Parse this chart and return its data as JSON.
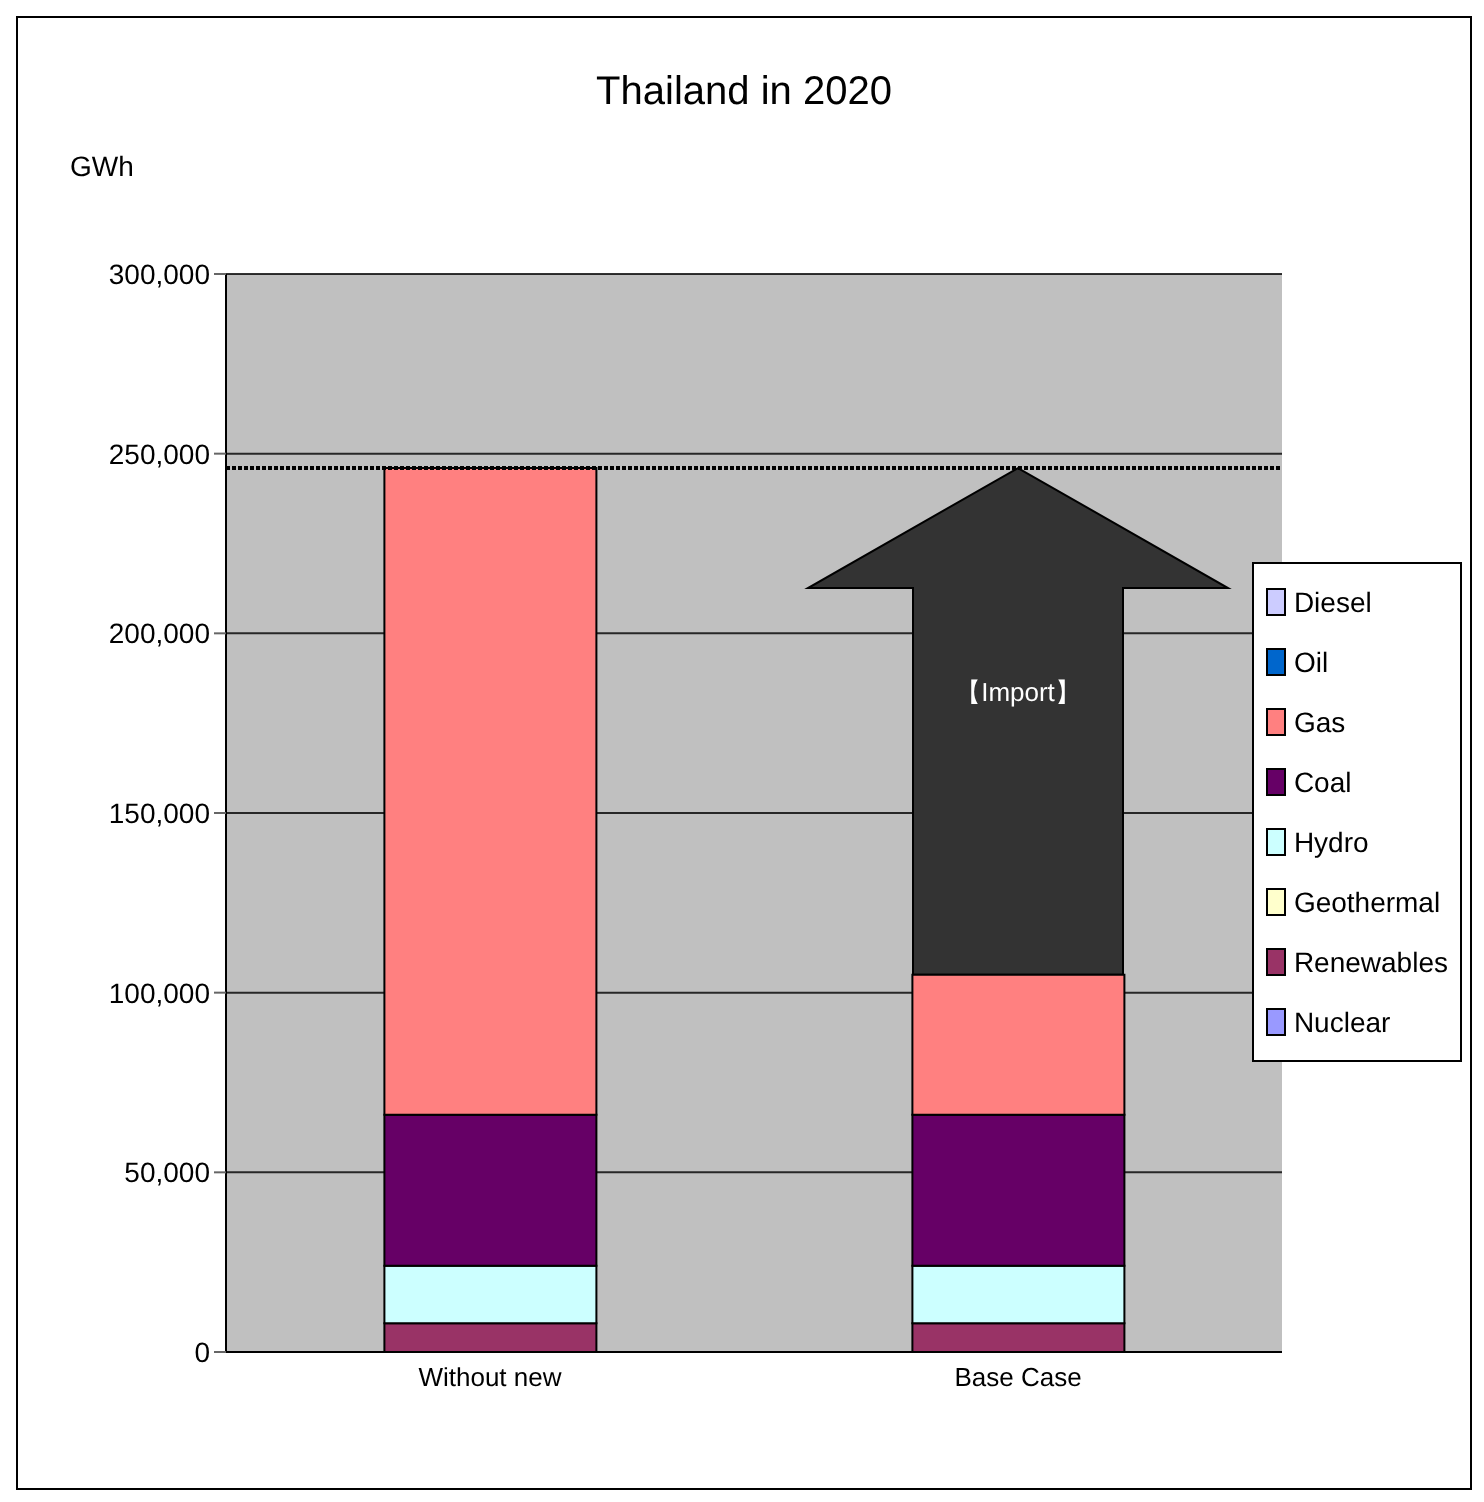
{
  "chart_data": {
    "type": "bar",
    "title": "Thailand in 2020",
    "ylabel": "GWh",
    "categories": [
      "Without new",
      "Base Case"
    ],
    "stacked": true,
    "series": [
      {
        "name": "Nuclear",
        "color": "#9999ff",
        "values": [
          0,
          0
        ]
      },
      {
        "name": "Renewables",
        "color": "#993366",
        "values": [
          8000,
          8000
        ]
      },
      {
        "name": "Geothermal",
        "color": "#ffffcc",
        "values": [
          0,
          0
        ]
      },
      {
        "name": "Hydro",
        "color": "#ccffff",
        "values": [
          16000,
          16000
        ]
      },
      {
        "name": "Coal",
        "color": "#660066",
        "values": [
          42000,
          42000
        ]
      },
      {
        "name": "Gas",
        "color": "#ff8080",
        "values": [
          180000,
          39000
        ]
      },
      {
        "name": "Oil",
        "color": "#0066cc",
        "values": [
          0,
          0
        ]
      },
      {
        "name": "Diesel",
        "color": "#ccccff",
        "values": [
          0,
          0
        ]
      }
    ],
    "ylim": [
      0,
      300000
    ],
    "yticks": [
      0,
      {
        "value": 50000,
        "label": "50,000"
      },
      {
        "value": 100000,
        "label": "100,000"
      },
      {
        "value": 150000,
        "label": "150,000"
      },
      {
        "value": 200000,
        "label": "200,000"
      },
      {
        "value": 250000,
        "label": "250,000"
      },
      {
        "value": 300000,
        "label": "300,000"
      }
    ],
    "grid": "y",
    "legend": "right",
    "ref_lines": [
      {
        "axis": "y",
        "value": 246000,
        "line_style": "dotted",
        "color": "#000000"
      }
    ],
    "annotations": [
      "【Import】"
    ]
  }
}
